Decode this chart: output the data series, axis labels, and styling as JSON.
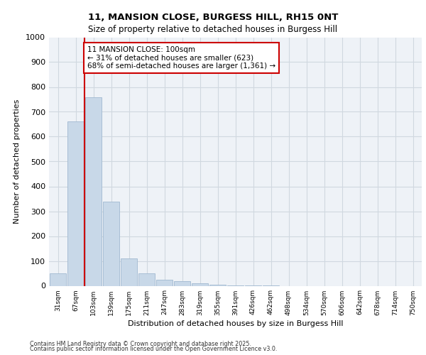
{
  "title1": "11, MANSION CLOSE, BURGESS HILL, RH15 0NT",
  "title2": "Size of property relative to detached houses in Burgess Hill",
  "xlabel": "Distribution of detached houses by size in Burgess Hill",
  "ylabel": "Number of detached properties",
  "bar_color": "#c8d8e8",
  "bar_edge_color": "#a0b8d0",
  "grid_color": "#d0d8e0",
  "background_color": "#eef2f7",
  "vline_color": "#cc0000",
  "annotation_text": "11 MANSION CLOSE: 100sqm\n← 31% of detached houses are smaller (623)\n68% of semi-detached houses are larger (1,361) →",
  "annotation_box_color": "#ffffff",
  "annotation_box_edge": "#cc0000",
  "categories": [
    "31sqm",
    "67sqm",
    "103sqm",
    "139sqm",
    "175sqm",
    "211sqm",
    "247sqm",
    "283sqm",
    "319sqm",
    "355sqm",
    "391sqm",
    "426sqm",
    "462sqm",
    "498sqm",
    "534sqm",
    "570sqm",
    "606sqm",
    "642sqm",
    "678sqm",
    "714sqm",
    "750sqm"
  ],
  "values": [
    50,
    660,
    760,
    340,
    110,
    50,
    25,
    20,
    10,
    5,
    2,
    1,
    1,
    0,
    0,
    0,
    0,
    0,
    0,
    0,
    0
  ],
  "ylim": [
    0,
    1000
  ],
  "yticks": [
    0,
    100,
    200,
    300,
    400,
    500,
    600,
    700,
    800,
    900,
    1000
  ],
  "footer1": "Contains HM Land Registry data © Crown copyright and database right 2025.",
  "footer2": "Contains public sector information licensed under the Open Government Licence v3.0."
}
